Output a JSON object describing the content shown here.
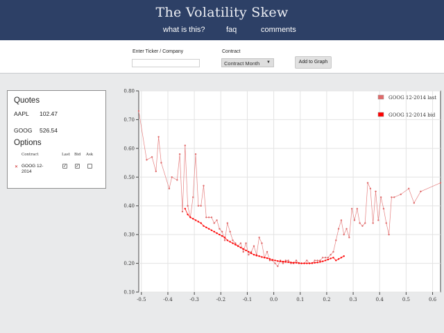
{
  "header": {
    "title": "The Volatility Skew",
    "nav": [
      "what is this?",
      "faq",
      "comments"
    ]
  },
  "toolbar": {
    "ticker_label": "Enter Ticker / Company",
    "ticker_value": "",
    "contract_label": "Contract",
    "contract_selected": "Contract Month",
    "add_button": "Add to Graph"
  },
  "quotes": {
    "title": "Quotes",
    "items": [
      {
        "symbol": "AAPL",
        "price": "102.47"
      },
      {
        "symbol": "GOOG",
        "price": "526.54"
      }
    ]
  },
  "options": {
    "title": "Options",
    "columns": [
      "Contract",
      "Last",
      "Bid",
      "Ask"
    ],
    "rows": [
      {
        "contract": "GOOG 12-2014",
        "last": true,
        "bid": true,
        "ask": false
      }
    ]
  },
  "colors": {
    "header_bg": "#2d4066",
    "series_last": "#e06a6a",
    "series_bid": "#ff0000"
  },
  "chart_data": {
    "type": "line",
    "xlim": [
      -0.51,
      0.63
    ],
    "ylim": [
      0.1,
      0.8
    ],
    "xticks": [
      "-0.5",
      "-0.4",
      "-0.3",
      "-0.2",
      "-0.1",
      "0.0",
      "0.1",
      "0.2",
      "0.3",
      "0.4",
      "0.5",
      "0.6"
    ],
    "yticks": [
      "0.10",
      "0.20",
      "0.30",
      "0.40",
      "0.50",
      "0.60",
      "0.70",
      "0.80"
    ],
    "grid": true,
    "legend_position": "top-right",
    "series": [
      {
        "name": "GOOG 12-2014 last",
        "x": [
          -0.51,
          -0.48,
          -0.46,
          -0.445,
          -0.435,
          -0.425,
          -0.395,
          -0.385,
          -0.365,
          -0.355,
          -0.345,
          -0.335,
          -0.325,
          -0.315,
          -0.305,
          -0.295,
          -0.285,
          -0.275,
          -0.265,
          -0.255,
          -0.245,
          -0.235,
          -0.225,
          -0.215,
          -0.205,
          -0.195,
          -0.185,
          -0.175,
          -0.165,
          -0.155,
          -0.145,
          -0.135,
          -0.125,
          -0.115,
          -0.105,
          -0.095,
          -0.085,
          -0.075,
          -0.065,
          -0.055,
          -0.045,
          -0.035,
          -0.025,
          -0.015,
          -0.005,
          0.005,
          0.015,
          0.025,
          0.035,
          0.045,
          0.055,
          0.065,
          0.075,
          0.085,
          0.095,
          0.105,
          0.115,
          0.125,
          0.135,
          0.145,
          0.155,
          0.165,
          0.175,
          0.185,
          0.195,
          0.205,
          0.215,
          0.225,
          0.235,
          0.245,
          0.255,
          0.265,
          0.275,
          0.285,
          0.295,
          0.305,
          0.315,
          0.325,
          0.335,
          0.345,
          0.355,
          0.365,
          0.375,
          0.385,
          0.395,
          0.405,
          0.415,
          0.425,
          0.435,
          0.445,
          0.455,
          0.48,
          0.51,
          0.53,
          0.555,
          0.63
        ],
        "y": [
          0.73,
          0.56,
          0.57,
          0.52,
          0.64,
          0.55,
          0.46,
          0.5,
          0.49,
          0.58,
          0.38,
          0.61,
          0.4,
          0.36,
          0.43,
          0.58,
          0.4,
          0.4,
          0.47,
          0.36,
          0.36,
          0.36,
          0.34,
          0.35,
          0.32,
          0.31,
          0.28,
          0.34,
          0.31,
          0.28,
          0.27,
          0.26,
          0.27,
          0.24,
          0.27,
          0.23,
          0.24,
          0.26,
          0.23,
          0.29,
          0.27,
          0.22,
          0.24,
          0.21,
          0.21,
          0.2,
          0.19,
          0.21,
          0.2,
          0.21,
          0.21,
          0.2,
          0.2,
          0.21,
          0.2,
          0.2,
          0.2,
          0.21,
          0.2,
          0.2,
          0.21,
          0.21,
          0.21,
          0.22,
          0.22,
          0.22,
          0.23,
          0.24,
          0.28,
          0.32,
          0.35,
          0.3,
          0.32,
          0.29,
          0.39,
          0.35,
          0.39,
          0.34,
          0.33,
          0.34,
          0.48,
          0.46,
          0.34,
          0.45,
          0.35,
          0.43,
          0.39,
          0.34,
          0.3,
          0.43,
          0.43,
          0.44,
          0.46,
          0.41,
          0.45,
          0.48
        ]
      },
      {
        "name": "GOOG 12-2014 bid",
        "x": [
          -0.335,
          -0.325,
          -0.315,
          -0.305,
          -0.295,
          -0.285,
          -0.275,
          -0.265,
          -0.255,
          -0.245,
          -0.235,
          -0.225,
          -0.215,
          -0.205,
          -0.195,
          -0.185,
          -0.175,
          -0.165,
          -0.155,
          -0.145,
          -0.135,
          -0.125,
          -0.115,
          -0.105,
          -0.095,
          -0.085,
          -0.075,
          -0.065,
          -0.055,
          -0.045,
          -0.035,
          -0.025,
          -0.015,
          -0.005,
          0.005,
          0.015,
          0.025,
          0.035,
          0.045,
          0.055,
          0.065,
          0.075,
          0.085,
          0.095,
          0.105,
          0.115,
          0.125,
          0.135,
          0.145,
          0.155,
          0.165,
          0.175,
          0.185,
          0.195,
          0.205,
          0.215,
          0.225,
          0.235,
          0.245,
          0.255,
          0.265
        ],
        "y": [
          0.39,
          0.37,
          0.36,
          0.355,
          0.35,
          0.345,
          0.34,
          0.33,
          0.325,
          0.32,
          0.315,
          0.31,
          0.305,
          0.3,
          0.295,
          0.29,
          0.28,
          0.275,
          0.27,
          0.265,
          0.26,
          0.255,
          0.25,
          0.245,
          0.24,
          0.235,
          0.23,
          0.227,
          0.225,
          0.222,
          0.22,
          0.218,
          0.215,
          0.212,
          0.21,
          0.208,
          0.207,
          0.206,
          0.205,
          0.204,
          0.203,
          0.202,
          0.202,
          0.201,
          0.2,
          0.2,
          0.2,
          0.2,
          0.201,
          0.202,
          0.203,
          0.205,
          0.207,
          0.21,
          0.213,
          0.217,
          0.22,
          0.21,
          0.215,
          0.22,
          0.225
        ]
      }
    ]
  }
}
